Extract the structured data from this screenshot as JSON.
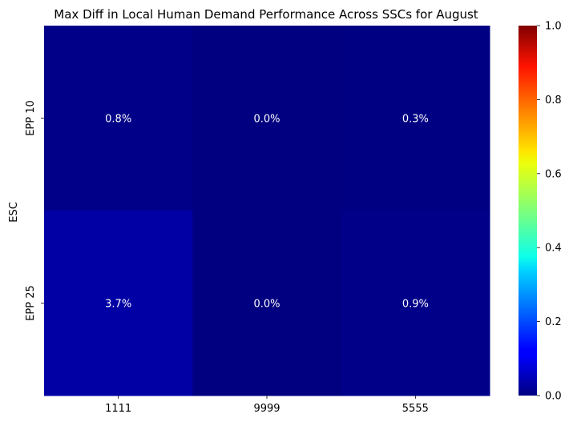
{
  "chart_data": {
    "type": "heatmap",
    "title": "Max Diff in Local Human Demand Performance Across SSCs for August",
    "xlabel": "",
    "ylabel": "ESC",
    "x_categories": [
      "1111",
      "9999",
      "5555"
    ],
    "y_categories": [
      "EPP 10",
      "EPP 25"
    ],
    "values": [
      [
        0.008,
        0.0,
        0.003
      ],
      [
        0.037,
        0.0,
        0.009
      ]
    ],
    "annotations": [
      [
        "0.8%",
        "0.0%",
        "0.3%"
      ],
      [
        "3.7%",
        "0.0%",
        "0.9%"
      ]
    ],
    "colormap": "jet",
    "vmin": 0.0,
    "vmax": 1.0,
    "colorbar_ticks": [
      "0.0",
      "0.2",
      "0.4",
      "0.6",
      "0.8",
      "1.0"
    ],
    "grid": false,
    "annotation_color": "#ffffff"
  }
}
